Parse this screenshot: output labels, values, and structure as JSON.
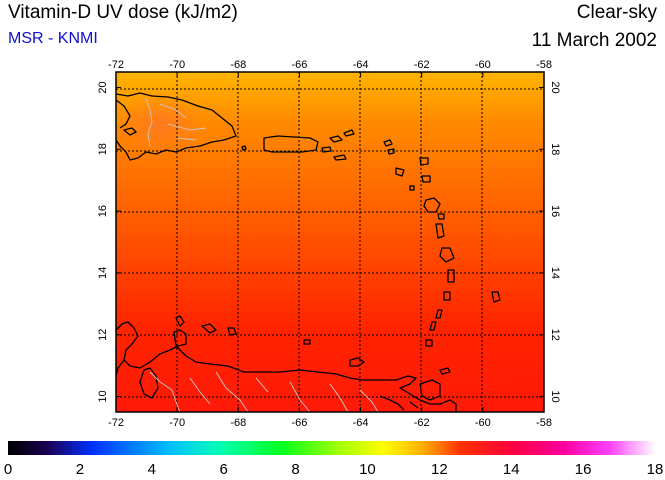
{
  "header": {
    "title": "Vitamin-D UV dose (kJ/m2)",
    "source": "MSR - KNMI",
    "condition": "Clear-sky",
    "date": "11 March 2002"
  },
  "map": {
    "lon_range": [
      -72,
      -58
    ],
    "lat_range": [
      9.5,
      20.5
    ],
    "lon_ticks": [
      "-72",
      "-70",
      "-68",
      "-66",
      "-64",
      "-62",
      "-60",
      "-58"
    ],
    "lat_ticks": [
      "10",
      "12",
      "14",
      "16",
      "18",
      "20"
    ],
    "dose_field_description_levels": [
      11,
      13
    ],
    "dose_north": 11.3,
    "dose_south": 13.2,
    "gridlines": true
  },
  "colorbar": {
    "min": 0,
    "max": 18,
    "ticks": [
      "0",
      "2",
      "4",
      "6",
      "8",
      "10",
      "12",
      "14",
      "16",
      "18"
    ],
    "stops": [
      "#000000",
      "#1a0050",
      "#0030ff",
      "#00c0ff",
      "#00ffb0",
      "#00ff20",
      "#b0ff00",
      "#ffff00",
      "#ffb000",
      "#ff3000",
      "#ff0040",
      "#ff00a0",
      "#ff40ff",
      "#ffffff"
    ]
  },
  "colors": {
    "coast": "#000000",
    "border": "#c8c8c8",
    "grid": "#000000"
  }
}
